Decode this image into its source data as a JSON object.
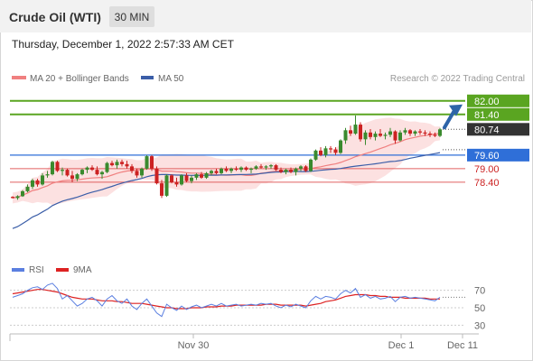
{
  "header": {
    "instrument": "Crude Oil (WTI)",
    "timeframe": "30 MIN",
    "datetime": "Thursday, December 1, 2022 2:57:33 AM CET"
  },
  "legend": {
    "ma20_label": "MA 20 + Bollinger Bands",
    "ma50_label": "MA 50",
    "credit": "Research © 2022 Trading Central",
    "rsi_label": "RSI",
    "ma9_label": "9MA"
  },
  "colors": {
    "up_candle": "#3a8a2e",
    "down_candle": "#cc2222",
    "resistance": "#5aa521",
    "support": "#e06060",
    "pivot": "#2f6fd8",
    "last_price": "#333333",
    "ma20": "#f08080",
    "ma50": "#3b5ea8",
    "bollinger_fill": "#fbdcdc",
    "rsi": "#5b7fe0",
    "rsi_ma": "#dd2222",
    "arrow": "#2d64a8"
  },
  "chart_data": [
    {
      "type": "candlestick",
      "title": "Crude Oil (WTI)",
      "timeframe": "30 MIN",
      "ylim": [
        75.2,
        82.55
      ],
      "x_ticks": [
        "Nov 30",
        "Dec 1",
        "Dec 11"
      ],
      "levels": [
        {
          "value": 82.0,
          "label": "82.00",
          "kind": "resistance"
        },
        {
          "value": 81.4,
          "label": "81.40",
          "kind": "resistance"
        },
        {
          "value": 80.74,
          "label": "80.74",
          "kind": "last_price"
        },
        {
          "value": 79.6,
          "label": "79.60",
          "kind": "pivot"
        },
        {
          "value": 79.0,
          "label": "79.00",
          "kind": "support"
        },
        {
          "value": 78.4,
          "label": "78.40",
          "kind": "support"
        }
      ],
      "candles": [
        [
          77.75,
          77.78,
          77.68,
          77.7
        ],
        [
          77.7,
          77.82,
          77.62,
          77.78
        ],
        [
          77.78,
          78.05,
          77.75,
          78.0
        ],
        [
          78.0,
          78.3,
          77.95,
          78.2
        ],
        [
          78.2,
          78.55,
          78.1,
          78.48
        ],
        [
          78.48,
          78.55,
          78.2,
          78.3
        ],
        [
          78.3,
          78.8,
          78.25,
          78.7
        ],
        [
          78.7,
          78.9,
          78.6,
          78.75
        ],
        [
          78.75,
          79.35,
          78.7,
          79.3
        ],
        [
          79.3,
          79.35,
          78.85,
          78.9
        ],
        [
          78.9,
          79.05,
          78.7,
          78.95
        ],
        [
          78.95,
          79.0,
          78.65,
          78.7
        ],
        [
          78.7,
          78.9,
          78.4,
          78.55
        ],
        [
          78.55,
          78.8,
          78.45,
          78.75
        ],
        [
          78.75,
          79.0,
          78.7,
          78.95
        ],
        [
          78.95,
          79.1,
          78.8,
          79.05
        ],
        [
          79.05,
          79.15,
          78.9,
          78.95
        ],
        [
          78.95,
          79.1,
          78.7,
          78.75
        ],
        [
          78.75,
          78.9,
          78.55,
          78.85
        ],
        [
          78.85,
          79.3,
          78.8,
          79.25
        ],
        [
          79.25,
          79.35,
          79.1,
          79.15
        ],
        [
          79.15,
          79.4,
          79.0,
          79.3
        ],
        [
          79.3,
          79.4,
          79.1,
          79.2
        ],
        [
          79.2,
          79.35,
          79.0,
          79.1
        ],
        [
          79.1,
          79.2,
          78.8,
          78.9
        ],
        [
          78.9,
          79.0,
          78.6,
          78.7
        ],
        [
          78.7,
          79.05,
          78.6,
          79.0
        ],
        [
          79.0,
          79.6,
          78.95,
          79.55
        ],
        [
          79.55,
          79.6,
          78.9,
          79.0
        ],
        [
          79.0,
          79.1,
          78.3,
          78.35
        ],
        [
          78.35,
          78.5,
          77.7,
          77.8
        ],
        [
          77.8,
          78.75,
          77.75,
          78.7
        ],
        [
          78.7,
          78.75,
          78.35,
          78.4
        ],
        [
          78.4,
          78.6,
          78.2,
          78.3
        ],
        [
          78.3,
          78.75,
          78.25,
          78.7
        ],
        [
          78.7,
          78.8,
          78.4,
          78.45
        ],
        [
          78.45,
          78.7,
          78.35,
          78.6
        ],
        [
          78.6,
          78.8,
          78.5,
          78.75
        ],
        [
          78.75,
          78.85,
          78.55,
          78.6
        ],
        [
          78.6,
          78.85,
          78.55,
          78.8
        ],
        [
          78.8,
          78.95,
          78.7,
          78.9
        ],
        [
          78.9,
          79.0,
          78.75,
          78.8
        ],
        [
          78.8,
          79.05,
          78.75,
          79.0
        ],
        [
          79.0,
          79.1,
          78.85,
          78.9
        ],
        [
          78.9,
          79.05,
          78.8,
          79.0
        ],
        [
          79.0,
          79.1,
          78.9,
          78.95
        ],
        [
          78.95,
          79.1,
          78.85,
          79.05
        ],
        [
          79.05,
          79.1,
          78.9,
          78.95
        ],
        [
          78.95,
          79.05,
          78.8,
          79.0
        ],
        [
          79.0,
          79.15,
          78.95,
          79.1
        ],
        [
          79.1,
          79.2,
          79.0,
          79.05
        ],
        [
          79.05,
          79.15,
          78.95,
          79.1
        ],
        [
          79.1,
          79.2,
          79.0,
          79.15
        ],
        [
          79.15,
          79.2,
          78.9,
          78.95
        ],
        [
          78.95,
          79.05,
          78.8,
          78.85
        ],
        [
          78.85,
          79.0,
          78.75,
          78.95
        ],
        [
          78.95,
          79.05,
          78.8,
          78.85
        ],
        [
          78.85,
          79.05,
          78.7,
          79.0
        ],
        [
          79.0,
          79.15,
          78.9,
          79.1
        ],
        [
          79.1,
          79.15,
          78.85,
          78.9
        ],
        [
          78.9,
          79.45,
          78.85,
          79.4
        ],
        [
          79.4,
          79.85,
          79.35,
          79.8
        ],
        [
          79.8,
          79.95,
          79.55,
          79.6
        ],
        [
          79.6,
          80.0,
          79.5,
          79.9
        ],
        [
          79.9,
          80.0,
          79.7,
          79.85
        ],
        [
          79.85,
          79.95,
          79.6,
          79.7
        ],
        [
          79.7,
          80.3,
          79.65,
          80.25
        ],
        [
          80.25,
          80.8,
          80.1,
          80.7
        ],
        [
          80.7,
          80.9,
          80.45,
          80.55
        ],
        [
          80.55,
          81.35,
          80.5,
          80.95
        ],
        [
          80.95,
          81.05,
          80.2,
          80.3
        ],
        [
          80.3,
          80.7,
          80.05,
          80.6
        ],
        [
          80.6,
          80.75,
          80.3,
          80.4
        ],
        [
          80.4,
          80.65,
          80.25,
          80.55
        ],
        [
          80.55,
          80.75,
          80.4,
          80.45
        ],
        [
          80.45,
          80.6,
          80.3,
          80.5
        ],
        [
          80.5,
          80.8,
          80.4,
          80.65
        ],
        [
          80.65,
          80.7,
          80.1,
          80.25
        ],
        [
          80.25,
          80.7,
          80.2,
          80.6
        ],
        [
          80.6,
          80.8,
          80.5,
          80.7
        ],
        [
          80.7,
          80.75,
          80.45,
          80.55
        ],
        [
          80.55,
          80.7,
          80.45,
          80.65
        ],
        [
          80.65,
          80.75,
          80.5,
          80.6
        ],
        [
          80.6,
          80.7,
          80.45,
          80.55
        ],
        [
          80.55,
          80.65,
          80.4,
          80.5
        ],
        [
          80.5,
          80.6,
          80.4,
          80.45
        ],
        [
          80.45,
          80.8,
          80.4,
          80.74
        ]
      ],
      "rsi_panel": {
        "ylim": [
          20,
          80
        ],
        "ticks": [
          70,
          50,
          30
        ],
        "rsi": [
          62,
          64,
          66,
          70,
          73,
          74,
          71,
          76,
          78,
          72,
          60,
          64,
          58,
          52,
          55,
          60,
          62,
          58,
          52,
          60,
          64,
          58,
          55,
          60,
          52,
          48,
          55,
          60,
          52,
          44,
          40,
          54,
          50,
          47,
          52,
          48,
          51,
          53,
          50,
          52,
          54,
          52,
          55,
          52,
          53,
          54,
          52,
          53,
          54,
          53,
          55,
          54,
          55,
          52,
          50,
          53,
          51,
          54,
          52,
          50,
          58,
          63,
          60,
          63,
          62,
          60,
          66,
          70,
          67,
          72,
          62,
          65,
          61,
          63,
          60,
          61,
          63,
          57,
          62,
          63,
          61,
          62,
          61,
          60,
          59,
          58,
          62
        ],
        "ma9": [
          66,
          67,
          68,
          69,
          70,
          71,
          71,
          70,
          69,
          68,
          66,
          64,
          62,
          61,
          60,
          60,
          60,
          59,
          58,
          58,
          58,
          57,
          57,
          56,
          55,
          55,
          55,
          54,
          53,
          52,
          51,
          50,
          50,
          49,
          49,
          49,
          50,
          50,
          50,
          51,
          51,
          51,
          52,
          52,
          52,
          53,
          53,
          53,
          53,
          53,
          53,
          54,
          54,
          54,
          53,
          53,
          53,
          53,
          53,
          52,
          53,
          54,
          55,
          57,
          58,
          59,
          61,
          63,
          64,
          65,
          65,
          65,
          64,
          64,
          63,
          63,
          62,
          62,
          62,
          61,
          61,
          61,
          61,
          61,
          60,
          60,
          60
        ]
      }
    }
  ]
}
